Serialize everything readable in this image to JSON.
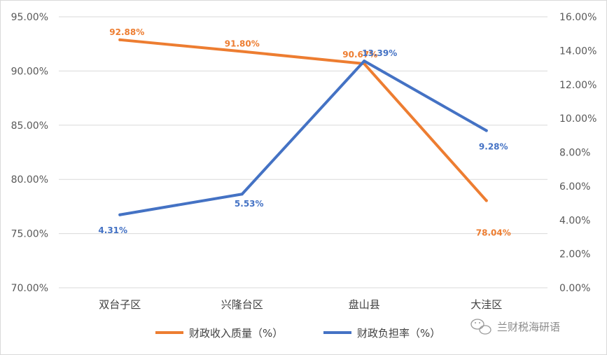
{
  "chart_data": {
    "type": "line",
    "categories": [
      "双台子区",
      "兴隆台区",
      "盘山县",
      "大洼区"
    ],
    "series": [
      {
        "name": "财政收入质量（%）",
        "axis": "left",
        "color": "#ED7D31",
        "values": [
          92.88,
          91.8,
          90.67,
          78.04
        ],
        "labels": [
          "92.88%",
          "91.80%",
          "90.67%",
          "78.04%"
        ]
      },
      {
        "name": "财政负担率（%）",
        "axis": "right",
        "color": "#4472C4",
        "values": [
          4.31,
          5.53,
          13.39,
          9.28
        ],
        "labels": [
          "4.31%",
          "5.53%",
          "13.39%",
          "9.28%"
        ]
      }
    ],
    "y_left": {
      "min": 70,
      "max": 95,
      "step": 5,
      "ticks": [
        "95.00%",
        "90.00%",
        "85.00%",
        "80.00%",
        "75.00%",
        "70.00%"
      ]
    },
    "y_right": {
      "min": 0,
      "max": 16,
      "step": 2,
      "ticks": [
        "16.00%",
        "14.00%",
        "12.00%",
        "10.00%",
        "8.00%",
        "6.00%",
        "4.00%",
        "2.00%",
        "0.00%"
      ]
    },
    "grid": true,
    "legend": "bottom"
  },
  "watermark": {
    "text": "兰财税海研语",
    "icon": "wechat-icon"
  }
}
